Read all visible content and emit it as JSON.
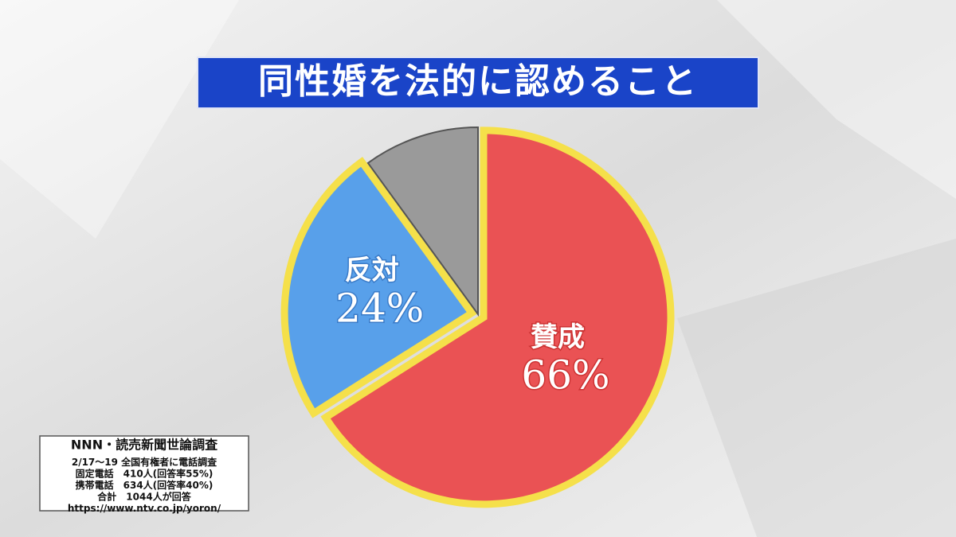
{
  "chart_data": {
    "type": "pie",
    "title": "同性婚を法的に認めること",
    "categories": [
      "賛成",
      "反対",
      null
    ],
    "values": [
      66,
      24,
      10
    ],
    "value_labels": [
      "66%",
      "24%",
      null
    ],
    "colors": [
      "#ea5254",
      "#58a0ea",
      "#9a9a9a"
    ],
    "source": [
      "NNN・読売新聞世論調査",
      "2/17〜19 全国有権者に電話調査",
      "固定電話　410人(回答率55%)",
      "携帯電話　634人(回答率40%)",
      "合計　1044人が回答",
      "https://www.ntv.co.jp/yoron/"
    ]
  }
}
